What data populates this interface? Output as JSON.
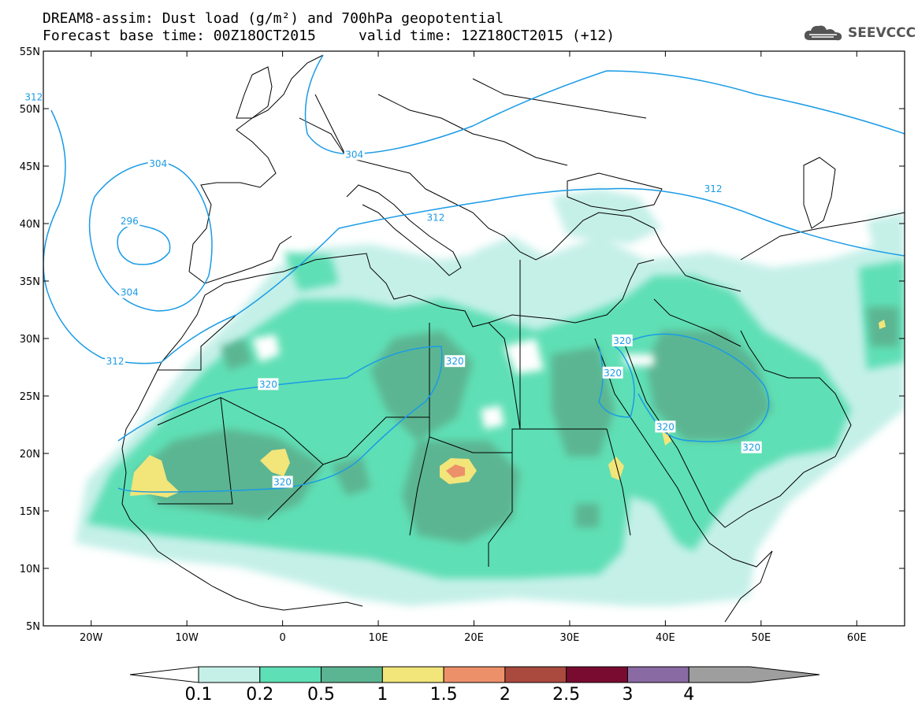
{
  "header": {
    "line1": "DREAM8-assim: Dust load (g/m²) and 700hPa geopotential",
    "line2": "Forecast base time: 00Z18OCT2015     valid time: 12Z18OCT2015 (+12)"
  },
  "logo": {
    "text": "SEEVCCC",
    "icon": "cloud-icon"
  },
  "map": {
    "lat_labels": [
      "55N",
      "50N",
      "45N",
      "40N",
      "35N",
      "30N",
      "25N",
      "20N",
      "15N",
      "10N",
      "5N"
    ],
    "lon_labels": [
      "20W",
      "10W",
      "0",
      "10E",
      "20E",
      "30E",
      "40E",
      "50E",
      "60E"
    ],
    "lat_range": [
      5,
      55
    ],
    "lon_range": [
      -25,
      65
    ],
    "contour_labels": [
      {
        "text": "304",
        "lon": -13,
        "lat": 45.2
      },
      {
        "text": "296",
        "lon": -16,
        "lat": 40.2
      },
      {
        "text": "304",
        "lon": -16,
        "lat": 34.0
      },
      {
        "text": "312",
        "lon": -17.5,
        "lat": 28.0
      },
      {
        "text": "312",
        "lon": -26,
        "lat": 51.0
      },
      {
        "text": "304",
        "lon": 7.5,
        "lat": 46.0
      },
      {
        "text": "312",
        "lon": 16,
        "lat": 40.5
      },
      {
        "text": "312",
        "lon": 45,
        "lat": 43.0
      },
      {
        "text": "320",
        "lon": -1.5,
        "lat": 26.0
      },
      {
        "text": "320",
        "lon": 18,
        "lat": 28.0
      },
      {
        "text": "320",
        "lon": 0,
        "lat": 17.5
      },
      {
        "text": "320",
        "lon": 35.5,
        "lat": 29.8
      },
      {
        "text": "320",
        "lon": 34.5,
        "lat": 27.0
      },
      {
        "text": "320",
        "lon": 40,
        "lat": 22.3
      },
      {
        "text": "320",
        "lon": 49,
        "lat": 20.5
      }
    ]
  },
  "colorbar": {
    "labels": [
      "0.1",
      "0.2",
      "0.5",
      "1",
      "1.5",
      "2",
      "2.5",
      "3",
      "4"
    ],
    "colors": [
      "#c5f0e8",
      "#5fdfb5",
      "#5bb592",
      "#f2e57a",
      "#ec906a",
      "#aa4a3f",
      "#7a0b30",
      "#8a6aa3",
      "#9e9e9e"
    ],
    "under_color": "#ffffff"
  },
  "colors": {
    "contour": "#1a9be6",
    "coast": "#000000"
  }
}
